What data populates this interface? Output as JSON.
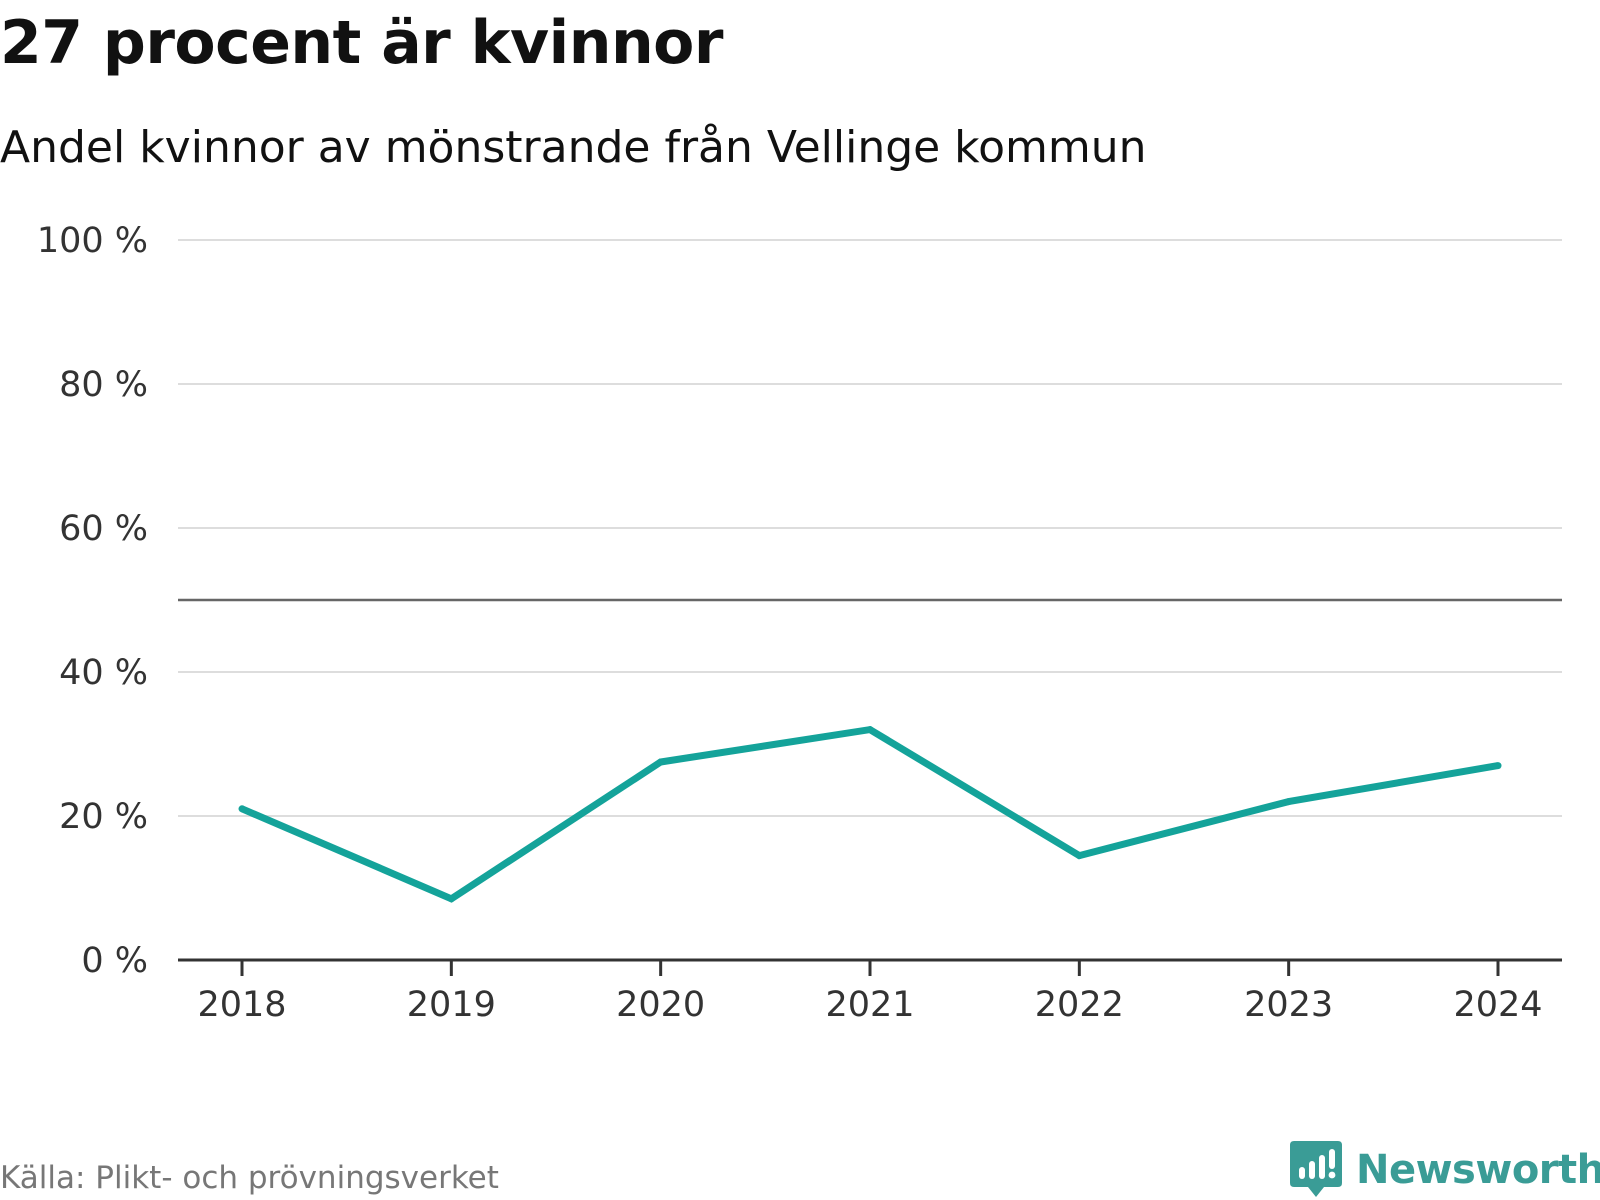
{
  "title": "27 procent är kvinnor",
  "subtitle": "Andel kvinnor av mönstrande från Vellinge kommun",
  "source": "Källa: Plikt- och prövningsverket",
  "brand": {
    "name": "Newsworthy",
    "icon": "newsworthy-logo-icon",
    "color": "#3a9c96"
  },
  "chart_data": {
    "type": "line",
    "x": [
      "2018",
      "2019",
      "2020",
      "2021",
      "2022",
      "2023",
      "2024"
    ],
    "series": [
      {
        "values": [
          21,
          8.5,
          27.5,
          32,
          14.5,
          22,
          27
        ],
        "color": "#14a39a"
      }
    ],
    "ylim": [
      0,
      100
    ],
    "yticks": [
      0,
      20,
      40,
      60,
      80,
      100
    ],
    "ytick_labels": [
      "0 %",
      "20 %",
      "40 %",
      "60 %",
      "80 %",
      "100 %"
    ],
    "reference_line": 50,
    "grid": true,
    "gridline_color": "#dddddd",
    "xlabel": "",
    "ylabel": ""
  }
}
